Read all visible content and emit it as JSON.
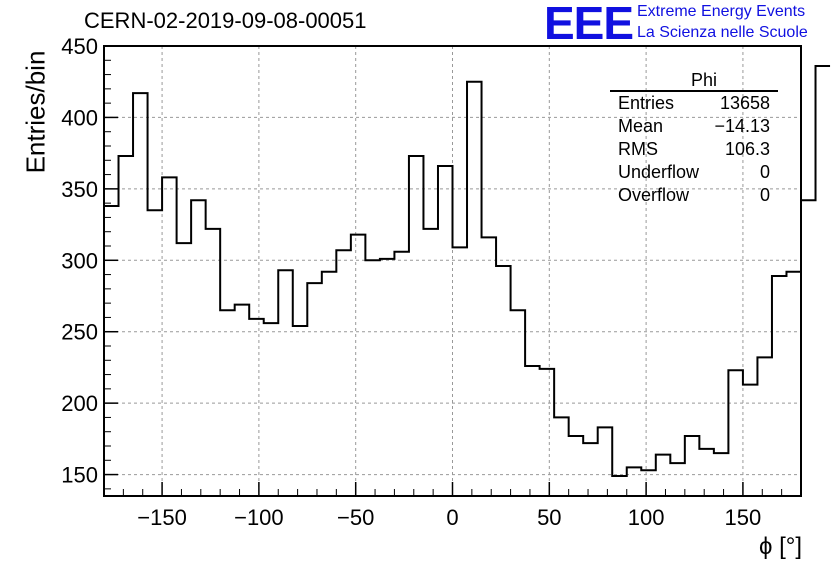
{
  "run_title": "CERN-02-2019-09-08-00051",
  "logo": {
    "mark": "EEE",
    "line1": "Extreme Energy Events",
    "line2": "La Scienza nelle Scuole",
    "color": "#1010e0"
  },
  "stats_box": {
    "title": "Phi",
    "rows": [
      {
        "label": "Entries",
        "value": "13658"
      },
      {
        "label": "Mean",
        "value": "−14.13"
      },
      {
        "label": "RMS",
        "value": "106.3"
      },
      {
        "label": "Underflow",
        "value": "0"
      },
      {
        "label": "Overflow",
        "value": "0"
      }
    ]
  },
  "chart_data": {
    "type": "histogram",
    "title": "",
    "xlabel": "ϕ [°]",
    "ylabel": "Entries/bin",
    "xlim": [
      -180,
      180
    ],
    "ylim": [
      135,
      450
    ],
    "bin_width": 7.5,
    "bin_edges_start": -180,
    "values": [
      338,
      373,
      417,
      335,
      358,
      312,
      342,
      322,
      265,
      269,
      259,
      256,
      293,
      254,
      284,
      292,
      307,
      318,
      300,
      301,
      306,
      373,
      322,
      366,
      309,
      425,
      316,
      296,
      265,
      226,
      224,
      190,
      177,
      172,
      183,
      149,
      155,
      153,
      164,
      158,
      177,
      168,
      165,
      223,
      213,
      232,
      289,
      292,
      342,
      436
    ],
    "xticks": [
      -150,
      -100,
      -50,
      0,
      50,
      100,
      150
    ],
    "xtick_labels": [
      "−150",
      "−100",
      "−50",
      "0",
      "50",
      "100",
      "150"
    ],
    "yticks": [
      150,
      200,
      250,
      300,
      350,
      400,
      450
    ],
    "ytick_labels": [
      "150",
      "200",
      "250",
      "300",
      "350",
      "400",
      "450"
    ],
    "grid": true,
    "line_color": "#000000"
  }
}
